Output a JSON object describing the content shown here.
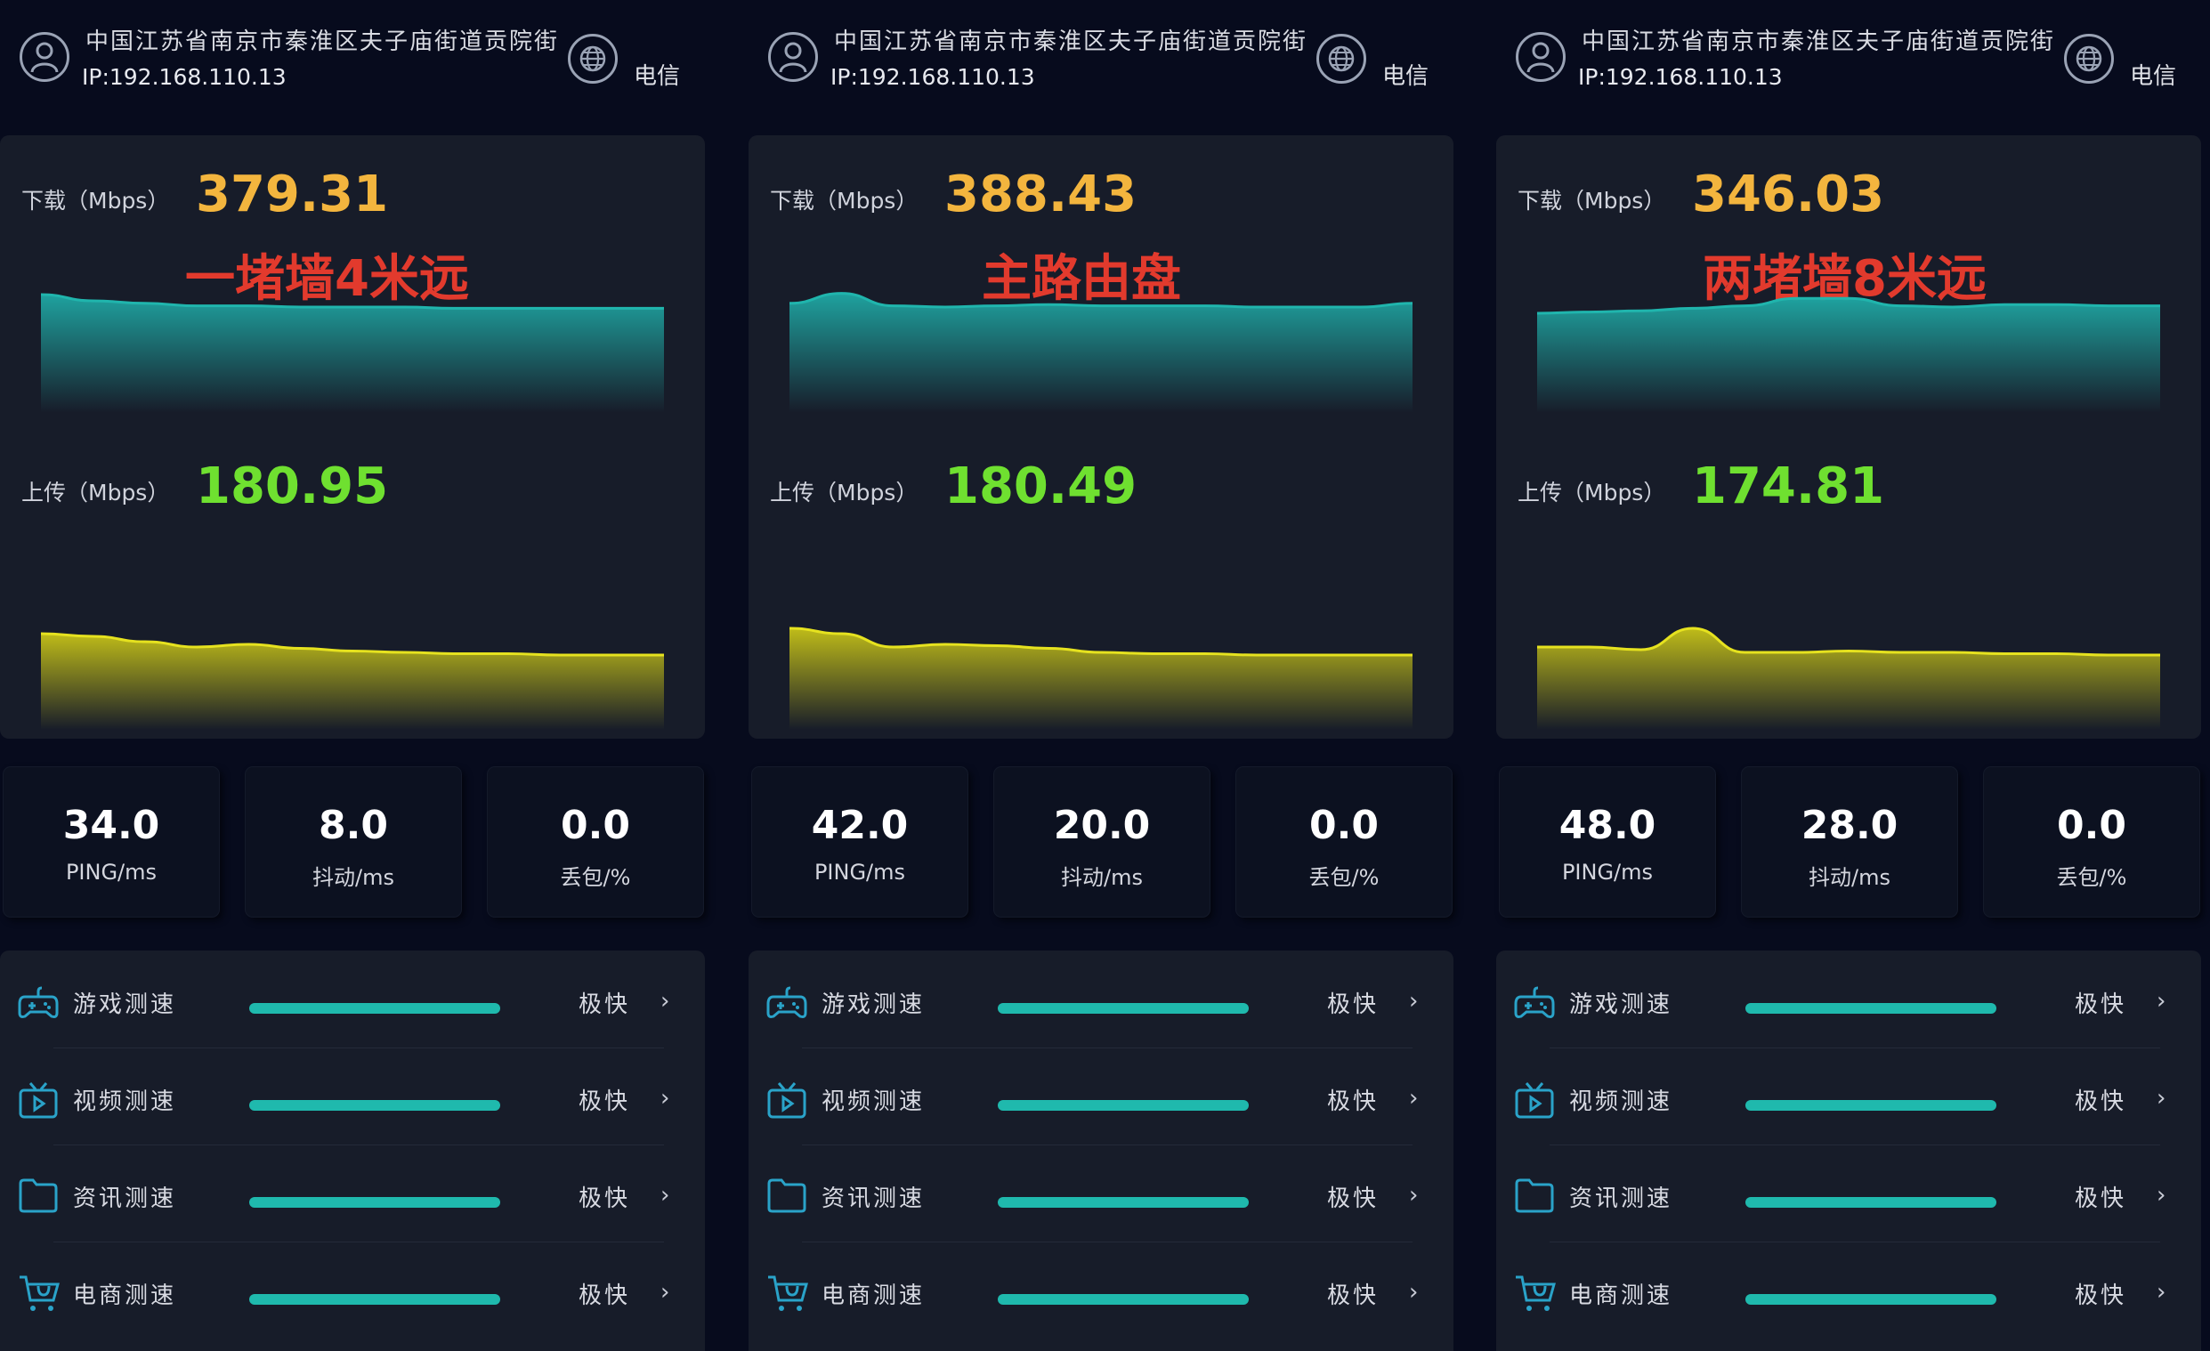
{
  "panels": [
    {
      "location": "中国江苏省南京市秦淮区夫子庙街道贡院街",
      "ip": "IP:192.168.110.13",
      "isp": "电信",
      "download_label": "下载（Mbps）",
      "download_value": "379.31",
      "annotation": "一堵墙4米远",
      "upload_label": "上传（Mbps）",
      "upload_value": "180.95",
      "metrics": [
        {
          "value": "34.0",
          "unit": "PING/ms"
        },
        {
          "value": "8.0",
          "unit": "抖动/ms"
        },
        {
          "value": "0.0",
          "unit": "丢包/%"
        }
      ],
      "tests": [
        {
          "label": "游戏测速",
          "status": "极快",
          "icon": "gamepad-icon",
          "level": 1.0
        },
        {
          "label": "视频测速",
          "status": "极快",
          "icon": "tv-play-icon",
          "level": 1.0
        },
        {
          "label": "资讯测速",
          "status": "极快",
          "icon": "folder-icon",
          "level": 1.0
        },
        {
          "label": "电商测速",
          "status": "极快",
          "icon": "shopping-cart-icon",
          "level": 1.0
        }
      ]
    },
    {
      "location": "中国江苏省南京市秦淮区夫子庙街道贡院街",
      "ip": "IP:192.168.110.13",
      "isp": "电信",
      "download_label": "下载（Mbps）",
      "download_value": "388.43",
      "annotation": "主路由盘",
      "upload_label": "上传（Mbps）",
      "upload_value": "180.49",
      "metrics": [
        {
          "value": "42.0",
          "unit": "PING/ms"
        },
        {
          "value": "20.0",
          "unit": "抖动/ms"
        },
        {
          "value": "0.0",
          "unit": "丢包/%"
        }
      ],
      "tests": [
        {
          "label": "游戏测速",
          "status": "极快",
          "icon": "gamepad-icon",
          "level": 1.0
        },
        {
          "label": "视频测速",
          "status": "极快",
          "icon": "tv-play-icon",
          "level": 1.0
        },
        {
          "label": "资讯测速",
          "status": "极快",
          "icon": "folder-icon",
          "level": 1.0
        },
        {
          "label": "电商测速",
          "status": "极快",
          "icon": "shopping-cart-icon",
          "level": 1.0
        }
      ]
    },
    {
      "location": "中国江苏省南京市秦淮区夫子庙街道贡院街",
      "ip": "IP:192.168.110.13",
      "isp": "电信",
      "download_label": "下载（Mbps）",
      "download_value": "346.03",
      "annotation": "两堵墙8米远",
      "upload_label": "上传（Mbps）",
      "upload_value": "174.81",
      "metrics": [
        {
          "value": "48.0",
          "unit": "PING/ms"
        },
        {
          "value": "28.0",
          "unit": "抖动/ms"
        },
        {
          "value": "0.0",
          "unit": "丢包/%"
        }
      ],
      "tests": [
        {
          "label": "游戏测速",
          "status": "极快",
          "icon": "gamepad-icon",
          "level": 1.0
        },
        {
          "label": "视频测速",
          "status": "极快",
          "icon": "tv-play-icon",
          "level": 1.0
        },
        {
          "label": "资讯测速",
          "status": "极快",
          "icon": "folder-icon",
          "level": 1.0
        },
        {
          "label": "电商测速",
          "status": "极快",
          "icon": "shopping-cart-icon",
          "level": 1.0
        }
      ]
    }
  ],
  "colors": {
    "background": "#070b1d",
    "card": "#171c29",
    "download": "#f3b53e",
    "upload": "#6fe030",
    "annotation": "#e23a2d",
    "download_curve": "#1fa9a5",
    "upload_curve": "#c8c418",
    "progress": "#1fb9ad"
  },
  "chart_data": [
    {
      "type": "area",
      "series": [
        {
          "values": [
            0.95,
            0.9,
            0.88,
            0.86,
            0.86,
            0.85,
            0.85,
            0.85,
            0.84,
            0.84,
            0.84,
            0.84,
            0.84
          ]
        },
        {
          "values": [
            0.72,
            0.7,
            0.66,
            0.62,
            0.64,
            0.61,
            0.59,
            0.58,
            0.57,
            0.57,
            0.56,
            0.56,
            0.56
          ]
        }
      ]
    },
    {
      "type": "area",
      "series": [
        {
          "values": [
            0.88,
            0.96,
            0.86,
            0.85,
            0.86,
            0.87,
            0.86,
            0.86,
            0.86,
            0.85,
            0.85,
            0.85,
            0.88
          ]
        },
        {
          "values": [
            0.76,
            0.72,
            0.62,
            0.64,
            0.63,
            0.61,
            0.58,
            0.57,
            0.57,
            0.56,
            0.56,
            0.56,
            0.56
          ]
        }
      ]
    },
    {
      "type": "area",
      "series": [
        {
          "values": [
            0.8,
            0.81,
            0.82,
            0.84,
            0.86,
            0.92,
            0.92,
            0.86,
            0.85,
            0.87,
            0.87,
            0.86,
            0.86
          ]
        },
        {
          "values": [
            0.62,
            0.62,
            0.6,
            0.76,
            0.58,
            0.58,
            0.59,
            0.58,
            0.58,
            0.57,
            0.57,
            0.56,
            0.56
          ]
        }
      ]
    }
  ]
}
